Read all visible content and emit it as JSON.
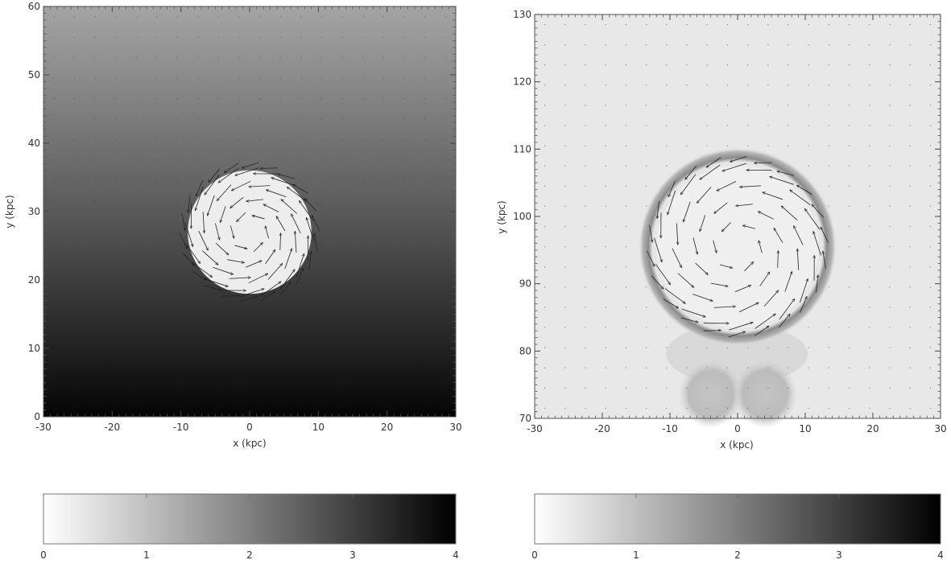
{
  "chart_data": [
    {
      "type": "heatmap",
      "panel": "left",
      "xlabel": "x (kpc)",
      "ylabel": "y (kpc)",
      "xlim": [
        -30,
        30
      ],
      "ylim": [
        0,
        60
      ],
      "xticks": [
        -30,
        -20,
        -10,
        0,
        10,
        20,
        30
      ],
      "xtick_labels": [
        "-30",
        "-20",
        "-10",
        "0",
        "10",
        "20",
        "30"
      ],
      "yticks": [
        0,
        10,
        20,
        30,
        40,
        50,
        60
      ],
      "ytick_labels": [
        "0",
        "10",
        "20",
        "30",
        "40",
        "50",
        "60"
      ],
      "field": "vertical gradient: value ~4 at y=0 fading to ~0.8 at y=60",
      "bubble": {
        "center": [
          0,
          27
        ],
        "radius": 9,
        "value": 0.1
      },
      "velocity_field": "rotating vortex inside bubble, small dots elsewhere",
      "colorbar": {
        "range": [
          0,
          4
        ],
        "ticks": [
          0,
          1,
          2,
          3,
          4
        ],
        "tick_labels": [
          "0",
          "1",
          "2",
          "3",
          "4"
        ],
        "colormap": "white-to-black"
      }
    },
    {
      "type": "heatmap",
      "panel": "right",
      "xlabel": "x (kpc)",
      "ylabel": "y (kpc)",
      "xlim": [
        -30,
        30
      ],
      "ylim": [
        70,
        130
      ],
      "xticks": [
        -30,
        -20,
        -10,
        0,
        10,
        20,
        30
      ],
      "xtick_labels": [
        "-30",
        "-20",
        "-10",
        "0",
        "10",
        "20",
        "30"
      ],
      "yticks": [
        70,
        80,
        90,
        100,
        110,
        120,
        130
      ],
      "ytick_labels": [
        "70",
        "80",
        "90",
        "100",
        "110",
        "120",
        "130"
      ],
      "field": "nearly uniform light background (~0.3)",
      "bubble": {
        "center": [
          0,
          95.5
        ],
        "radius": 12,
        "value": 0.1,
        "rim_value": 1.1
      },
      "velocity_field": "rotating vortex inside bubble, wake below bubble",
      "colorbar": {
        "range": [
          0,
          4
        ],
        "ticks": [
          0,
          1,
          2,
          3,
          4
        ],
        "tick_labels": [
          "0",
          "1",
          "2",
          "3",
          "4"
        ],
        "colormap": "white-to-black"
      }
    }
  ]
}
